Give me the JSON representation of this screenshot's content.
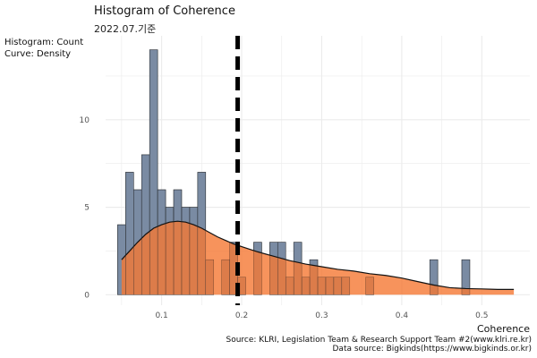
{
  "chart_data": {
    "type": "bar",
    "title": "Histogram of Coherence",
    "subtitle": "2022.07.기준",
    "y_label_lines": [
      "Histogram: Count",
      "Curve: Density"
    ],
    "xlabel": "Coherence",
    "caption_lines": [
      "Source: KLRI, Legislation Team & Research Support Team #2(www.klri.re.kr)",
      "Data source: Bigkinds(https://www.bigkinds.or.kr)"
    ],
    "xlim": [
      0.03,
      0.56
    ],
    "ylim": [
      -0.6,
      14.8
    ],
    "x_ticks": [
      0.1,
      0.2,
      0.3,
      0.4,
      0.5
    ],
    "x_tick_labels": [
      "0.1",
      "0.2",
      "0.3",
      "0.4",
      "0.5"
    ],
    "y_ticks": [
      0,
      5,
      10
    ],
    "y_tick_labels": [
      "0",
      "5",
      "10"
    ],
    "grid": true,
    "bins": {
      "start": 0.045,
      "width": 0.01,
      "counts": [
        4,
        7,
        6,
        8,
        14,
        6,
        5,
        6,
        5,
        5,
        7,
        2,
        0,
        2,
        3,
        1,
        0,
        3,
        0,
        3,
        3,
        1,
        3,
        1,
        2,
        1,
        1,
        1,
        1,
        0,
        0,
        1,
        0,
        0,
        0,
        0,
        0,
        0,
        0,
        2,
        0,
        0,
        0,
        2
      ]
    },
    "density_curve": {
      "x": [
        0.05,
        0.06,
        0.07,
        0.08,
        0.09,
        0.1,
        0.11,
        0.12,
        0.13,
        0.14,
        0.15,
        0.16,
        0.17,
        0.18,
        0.19,
        0.2,
        0.22,
        0.24,
        0.26,
        0.28,
        0.3,
        0.32,
        0.34,
        0.36,
        0.38,
        0.4,
        0.42,
        0.44,
        0.46,
        0.48,
        0.5,
        0.52,
        0.54
      ],
      "y": [
        2.0,
        2.5,
        3.0,
        3.45,
        3.8,
        4.0,
        4.15,
        4.2,
        4.15,
        4.0,
        3.8,
        3.55,
        3.3,
        3.1,
        2.9,
        2.75,
        2.45,
        2.2,
        1.95,
        1.75,
        1.6,
        1.45,
        1.35,
        1.2,
        1.1,
        0.95,
        0.75,
        0.55,
        0.4,
        0.35,
        0.33,
        0.3,
        0.3
      ]
    },
    "mean_line": 0.195,
    "colors": {
      "bar_fill": "#7a8ba3",
      "bar_stroke": "#2f3338",
      "density_fill": "#f57833",
      "density_line": "#111111",
      "mean_line": "#000000",
      "grid": "#ebebeb"
    }
  }
}
